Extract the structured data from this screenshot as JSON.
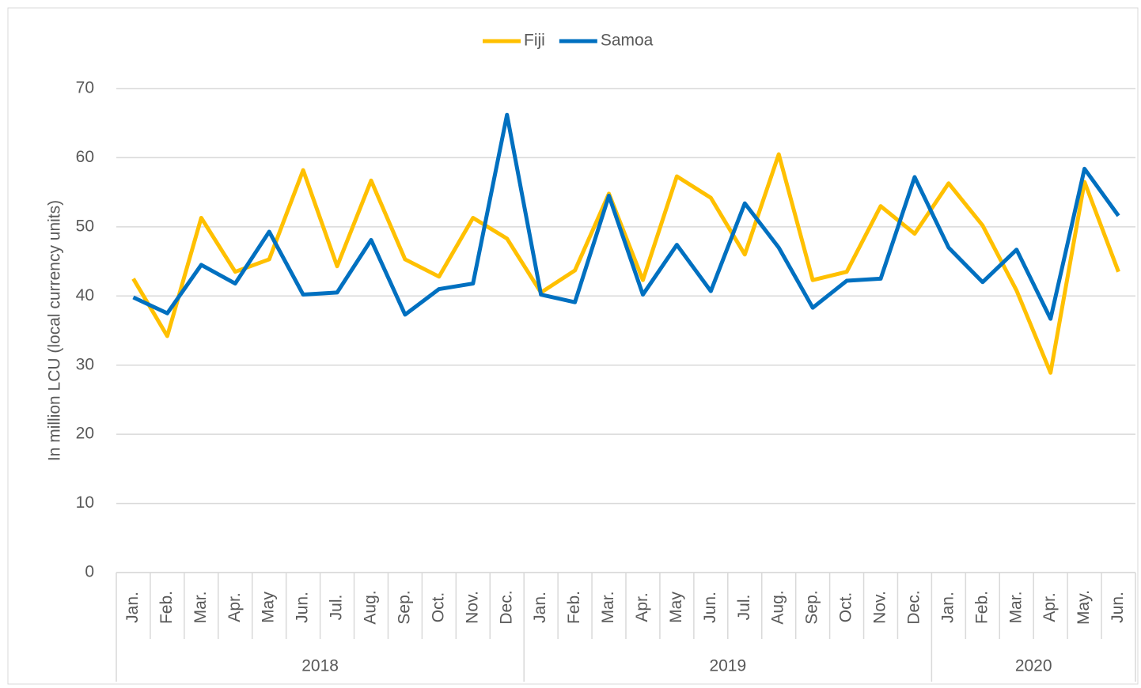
{
  "chart_data": {
    "type": "line",
    "y_axis_label": "In million LCU (local currency units)",
    "category_groups": [
      {
        "label": "2018",
        "categories": [
          "Jan.",
          "Feb.",
          "Mar.",
          "Apr.",
          "May",
          "Jun.",
          "Jul.",
          "Aug.",
          "Sep.",
          "Oct.",
          "Nov.",
          "Dec."
        ]
      },
      {
        "label": "2019",
        "categories": [
          "Jan.",
          "Feb.",
          "Mar.",
          "Apr.",
          "May",
          "Jun.",
          "Jul.",
          "Aug.",
          "Sep.",
          "Oct.",
          "Nov.",
          "Dec."
        ]
      },
      {
        "label": "2020",
        "categories": [
          "Jan.",
          "Feb.",
          "Mar.",
          "Apr.",
          "May.",
          "Jun."
        ]
      }
    ],
    "series": [
      {
        "name": "Fiji",
        "color": "#ffc000",
        "values": [
          42.5,
          34.2,
          51.3,
          43.5,
          45.3,
          58.2,
          44.3,
          56.7,
          45.3,
          42.8,
          51.3,
          48.3,
          40.5,
          43.7,
          54.8,
          42.3,
          57.3,
          54.2,
          46.0,
          60.5,
          42.3,
          43.5,
          53.0,
          49.0,
          56.3,
          50.2,
          40.8,
          28.9,
          56.5,
          43.5
        ]
      },
      {
        "name": "Samoa",
        "color": "#0070c0",
        "values": [
          39.8,
          37.5,
          44.5,
          41.8,
          49.3,
          40.2,
          40.5,
          48.1,
          37.3,
          41.0,
          41.8,
          66.2,
          40.2,
          39.1,
          54.5,
          40.2,
          47.4,
          40.7,
          53.4,
          47.0,
          38.3,
          42.2,
          42.5,
          57.2,
          47.0,
          42.0,
          46.7,
          36.7,
          58.4,
          51.6
        ]
      }
    ],
    "ylim": [
      0,
      70
    ],
    "yticks": [
      0,
      10,
      20,
      30,
      40,
      50,
      60,
      70
    ],
    "grid": true,
    "legend": "top"
  }
}
